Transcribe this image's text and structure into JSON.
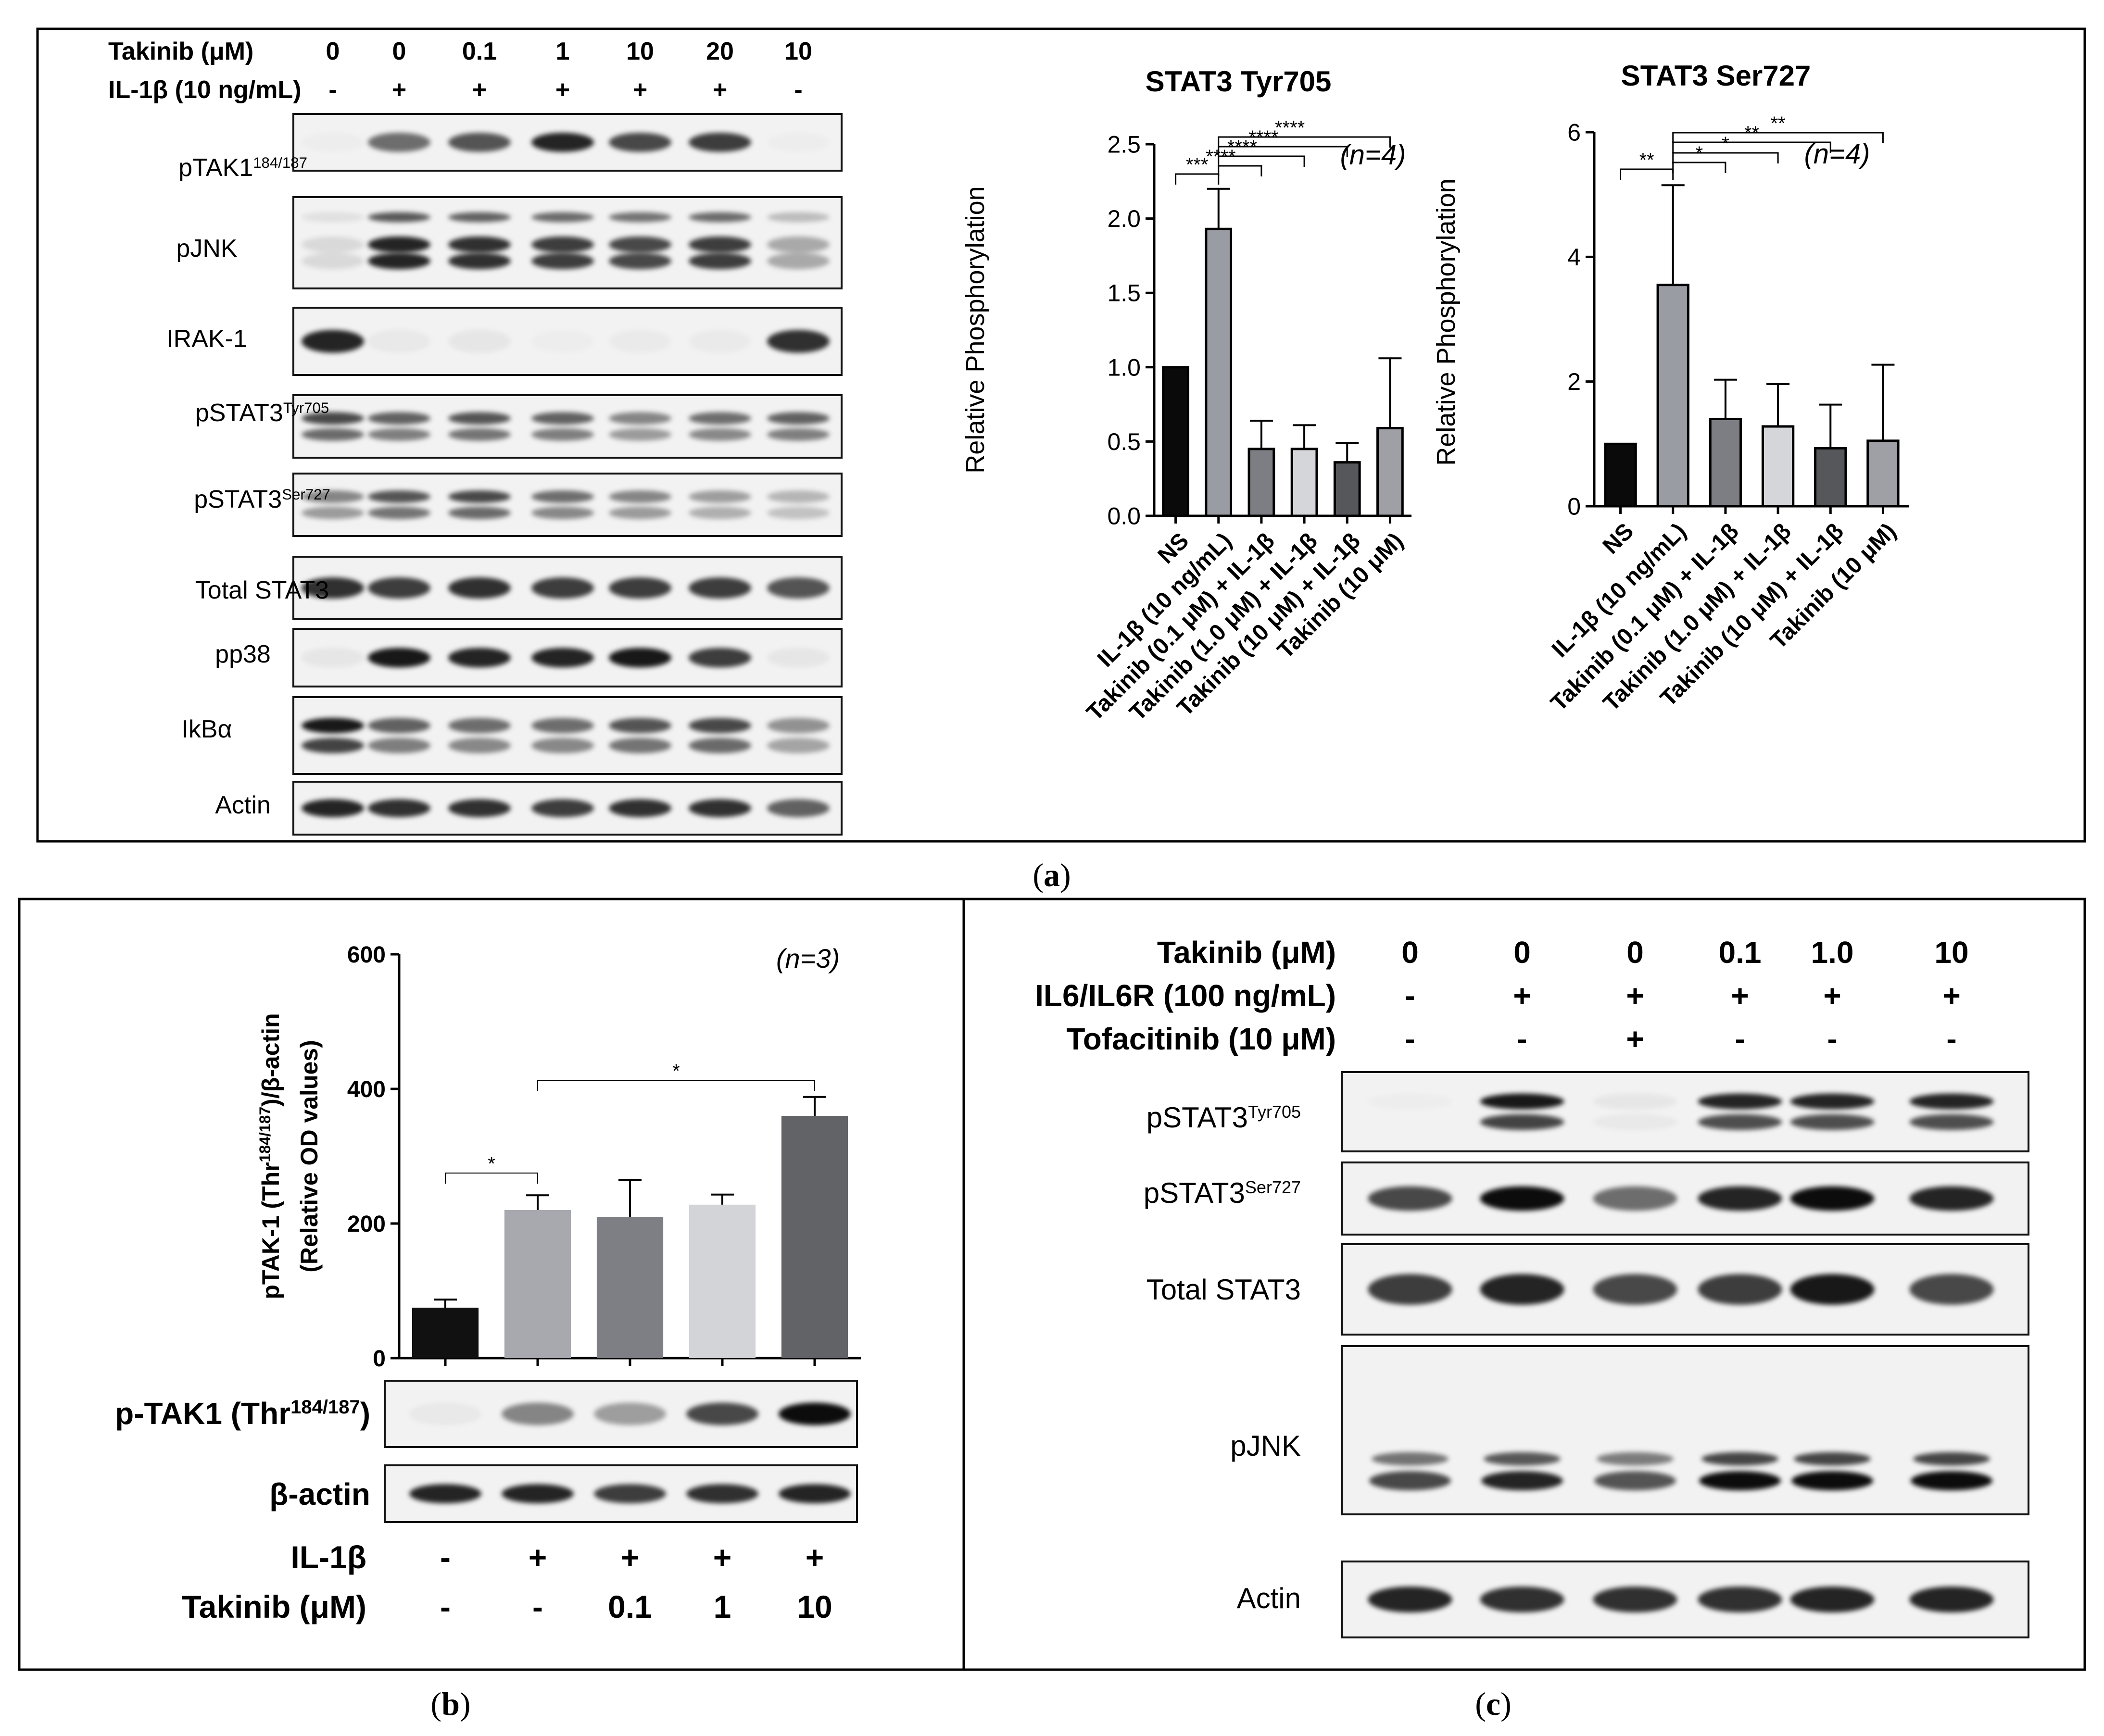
{
  "colors": {
    "ns": "#0a0a0a",
    "il1b": "#9a9ca3",
    "tak01": "#7c7e84",
    "tak1": "#d5d6da",
    "tak10": "#55575b",
    "takonly": "#9ea0a6",
    "b_ns": "#111111",
    "b_il1b": "#a7a9af",
    "b_tak01": "#7d7f84",
    "b_tak1": "#d3d4d8",
    "b_tak10": "#626367"
  },
  "panel_a": {
    "caption": "(a)",
    "caption_letter": "a",
    "takinib_label": "Takinib  (μM)",
    "takinib_values": [
      "0",
      "0",
      "0.1",
      "1",
      "10",
      "20",
      "10"
    ],
    "il1b_label": "IL-1β (10 ng/mL)",
    "il1b_values": [
      "-",
      "+",
      "+",
      "+",
      "+",
      "+",
      "-"
    ],
    "blots": [
      {
        "label": "pTAK1",
        "sup": "184/187",
        "intensities": [
          0.02,
          0.55,
          0.65,
          0.85,
          0.7,
          0.75,
          0.02
        ],
        "bands": 1
      },
      {
        "label": "pJNK",
        "sup": "",
        "intensities": [
          0.1,
          0.85,
          0.8,
          0.75,
          0.7,
          0.75,
          0.3
        ],
        "bands": 3
      },
      {
        "label": "IRAK-1",
        "sup": "",
        "intensities": [
          0.85,
          0.04,
          0.05,
          0.02,
          0.03,
          0.03,
          0.8
        ],
        "bands": 1
      },
      {
        "label": "pSTAT3",
        "sup": "Tyr705",
        "intensities": [
          0.7,
          0.6,
          0.65,
          0.6,
          0.45,
          0.55,
          0.6
        ],
        "bands": 2
      },
      {
        "label": "pSTAT3",
        "sup": "Ser727",
        "intensities": [
          0.45,
          0.65,
          0.7,
          0.55,
          0.45,
          0.35,
          0.25
        ],
        "bands": 2
      },
      {
        "label": "Total STAT3",
        "sup": "",
        "intensities": [
          0.8,
          0.75,
          0.8,
          0.75,
          0.75,
          0.75,
          0.65
        ],
        "bands": 1
      },
      {
        "label": "pp38",
        "sup": "",
        "intensities": [
          0.05,
          0.9,
          0.85,
          0.85,
          0.9,
          0.75,
          0.05
        ],
        "bands": 1
      },
      {
        "label": "IkBα",
        "sup": "",
        "intensities": [
          0.9,
          0.6,
          0.55,
          0.55,
          0.65,
          0.7,
          0.4
        ],
        "bands": 2
      },
      {
        "label": "Actin",
        "sup": "",
        "intensities": [
          0.85,
          0.8,
          0.8,
          0.75,
          0.8,
          0.8,
          0.6
        ],
        "bands": 1
      }
    ]
  },
  "chart_data": [
    {
      "type": "bar",
      "title": "STAT3 Tyr705",
      "ylabel": "Relative Phosphorylation",
      "xlabel": "",
      "categories": [
        "NS",
        "IL-1β (10 ng/mL)",
        "Takinib (0.1 μM) + IL-1β",
        "Takinib (1.0 μM) + IL-1β",
        "Takinib (10 μM) + IL-1β",
        "Takinib (10 μM)"
      ],
      "values": [
        1.0,
        1.93,
        0.45,
        0.45,
        0.36,
        0.59
      ],
      "errors": [
        0,
        0.27,
        0.19,
        0.16,
        0.13,
        0.47
      ],
      "ylim": [
        0,
        2.5
      ],
      "yticks": [
        "0.0",
        "0.5",
        "1.0",
        "1.5",
        "2.0",
        "2.5"
      ],
      "annotation": "(n=4)",
      "significance": [
        {
          "from": 0,
          "to": 1,
          "label": "***"
        },
        {
          "from": 1,
          "to": 2,
          "label": "****"
        },
        {
          "from": 1,
          "to": 3,
          "label": "****"
        },
        {
          "from": 1,
          "to": 4,
          "label": "****"
        },
        {
          "from": 1,
          "to": 5,
          "label": "****"
        }
      ]
    },
    {
      "type": "bar",
      "title": "STAT3 Ser727",
      "ylabel": "Relative Phosphorylation",
      "xlabel": "",
      "categories": [
        "NS",
        "IL-1β (10 ng/mL)",
        "Takinib (0.1 μM) + IL-1β",
        "Takinib (1.0 μM) + IL-1β",
        "Takinib (10 μM) + IL-1β",
        "Takinib (10 μM)"
      ],
      "values": [
        1.0,
        3.55,
        1.4,
        1.28,
        0.93,
        1.05
      ],
      "errors": [
        0,
        1.6,
        0.63,
        0.68,
        0.7,
        1.22
      ],
      "ylim": [
        0,
        6
      ],
      "yticks": [
        "0",
        "2",
        "4",
        "6"
      ],
      "annotation": "(n=4)",
      "significance": [
        {
          "from": 0,
          "to": 1,
          "label": "**"
        },
        {
          "from": 1,
          "to": 2,
          "label": "*"
        },
        {
          "from": 1,
          "to": 3,
          "label": "*"
        },
        {
          "from": 1,
          "to": 4,
          "label": "**"
        },
        {
          "from": 1,
          "to": 5,
          "label": "**"
        }
      ]
    },
    {
      "type": "bar",
      "title": "",
      "ylabel": "pTAK-1 (Thr¹⁸⁴ᐟ¹⁸⁷)/β-actin (Relative OD values)",
      "ylabel_line1": "pTAK-1 (Thr",
      "ylabel_sup": "184/187",
      "ylabel_line1_end": ")/β-actin",
      "ylabel_line2": "(Relative OD values)",
      "xlabel": "",
      "categories": [
        "-/-",
        "+/-",
        "+/0.1",
        "+/1",
        "+/10"
      ],
      "values": [
        75,
        220,
        210,
        228,
        360
      ],
      "errors": [
        12,
        22,
        55,
        15,
        28
      ],
      "ylim": [
        0,
        600
      ],
      "yticks": [
        "0",
        "200",
        "400",
        "600"
      ],
      "annotation": "(n=3)",
      "significance": [
        {
          "from": 0,
          "to": 1,
          "label": "*"
        },
        {
          "from": 1,
          "to": 4,
          "label": "*"
        }
      ]
    }
  ],
  "panel_b": {
    "caption": "(b)",
    "caption_letter": "b",
    "blot1_label": "p-TAK1 (Thr",
    "blot1_sup": "184/187",
    "blot1_end": ")",
    "blot2_label": "β-actin",
    "blot1_intensities": [
      0.04,
      0.45,
      0.35,
      0.7,
      0.95
    ],
    "blot2_intensities": [
      0.85,
      0.85,
      0.75,
      0.8,
      0.85
    ],
    "il1b_label": "IL-1β",
    "il1b_values": [
      "-",
      "+",
      "+",
      "+",
      "+"
    ],
    "takinib_label": "Takinib (μM)",
    "takinib_values": [
      "-",
      "-",
      "0.1",
      "1",
      "10"
    ]
  },
  "panel_c": {
    "caption": "(c)",
    "caption_letter": "c",
    "takinib_label": "Takinib  (μM)",
    "takinib_values": [
      "0",
      "0",
      "0",
      "0.1",
      "1.0",
      "10"
    ],
    "il6_label": "IL6/IL6R (100 ng/mL)",
    "il6_values": [
      "-",
      "+",
      "+",
      "+",
      "+",
      "+"
    ],
    "tofa_label": "Tofacitinib (10 μM)",
    "tofa_values": [
      "-",
      "-",
      "+",
      "-",
      "-",
      "-"
    ],
    "blots": [
      {
        "label": "pSTAT3",
        "sup": "Tyr705",
        "intensities": [
          0.02,
          0.9,
          0.05,
          0.85,
          0.85,
          0.85
        ],
        "bands": 2
      },
      {
        "label": "pSTAT3",
        "sup": "Ser727",
        "intensities": [
          0.7,
          0.95,
          0.55,
          0.85,
          0.95,
          0.85
        ],
        "bands": 1
      },
      {
        "label": "Total STAT3",
        "sup": "",
        "intensities": [
          0.75,
          0.85,
          0.7,
          0.75,
          0.9,
          0.7
        ],
        "bands": 1
      },
      {
        "label": "pJNK",
        "sup": "",
        "intensities": [
          0.7,
          0.85,
          0.65,
          0.95,
          0.95,
          0.95
        ],
        "bands": 2
      },
      {
        "label": "Actin",
        "sup": "",
        "intensities": [
          0.85,
          0.8,
          0.8,
          0.8,
          0.85,
          0.85
        ],
        "bands": 1
      }
    ]
  }
}
